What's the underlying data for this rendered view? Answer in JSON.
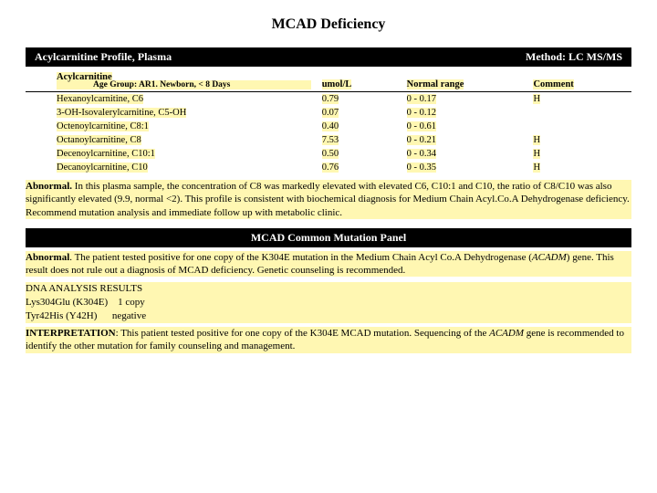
{
  "title": "MCAD Deficiency",
  "profile_bar": {
    "left": "Acylcarnitine Profile, Plasma",
    "right": "Method: LC MS/MS"
  },
  "ac_table": {
    "headers": {
      "col1_main": "Acylcarnitine",
      "col1_sub": "Age Group: AR1. Newborn, < 8 Days",
      "col2": "umol/L",
      "col3": "Normal range",
      "col4": "Comment"
    },
    "rows": [
      {
        "name": "Hexanoylcarnitine, C6",
        "val": "0.79",
        "range": "0 - 0.17",
        "comment": "H"
      },
      {
        "name": "3-OH-Isovalerylcarnitine, C5-OH",
        "val": "0.07",
        "range": "0 - 0.12",
        "comment": ""
      },
      {
        "name": "Octenoylcarnitine, C8:1",
        "val": "0.40",
        "range": "0 - 0.61",
        "comment": ""
      },
      {
        "name": "Octanoylcarnitine, C8",
        "val": "7.53",
        "range": "0 - 0.21",
        "comment": "H"
      },
      {
        "name": "Decenoylcarnitine, C10:1",
        "val": "0.50",
        "range": "0 - 0.34",
        "comment": "H"
      },
      {
        "name": "Decanoylcarnitine, C10",
        "val": "0.76",
        "range": "0 - 0.35",
        "comment": "H"
      }
    ]
  },
  "interp1": {
    "lead": "Abnormal.",
    "body": "  In this plasma sample, the concentration of C8 was markedly elevated with elevated C6, C10:1 and C10, the ratio of C8/C10 was also significantly elevated (9.9, normal <2). This profile is consistent with biochemical diagnosis for Medium Chain Acyl.Co.A Dehydrogenase deficiency. Recommend mutation analysis and immediate follow up with metabolic clinic."
  },
  "panel_bar": "MCAD Common Mutation Panel",
  "interp2": {
    "lead": "Abnormal",
    "body": ". The patient tested positive for one copy of the K304E mutation in the Medium Chain Acyl Co.A Dehydrogenase (",
    "gene": "ACADM",
    "body2": ") gene. This result does not rule out a diagnosis of MCAD deficiency. Genetic counseling is recommended."
  },
  "dna": {
    "heading": "DNA ANALYSIS RESULTS",
    "row1a": "Lys304Glu (K304E)",
    "row1b": "1 copy",
    "row2a": "Tyr42His (Y42H)",
    "row2b": "negative"
  },
  "interp3": {
    "lead": "INTERPRETATION",
    "body": ": This patient tested positive for one copy of the K304E MCAD mutation. Sequencing of the ",
    "gene": "ACADM",
    "body2": " gene is recommended to identify the other mutation for family counseling and management."
  }
}
